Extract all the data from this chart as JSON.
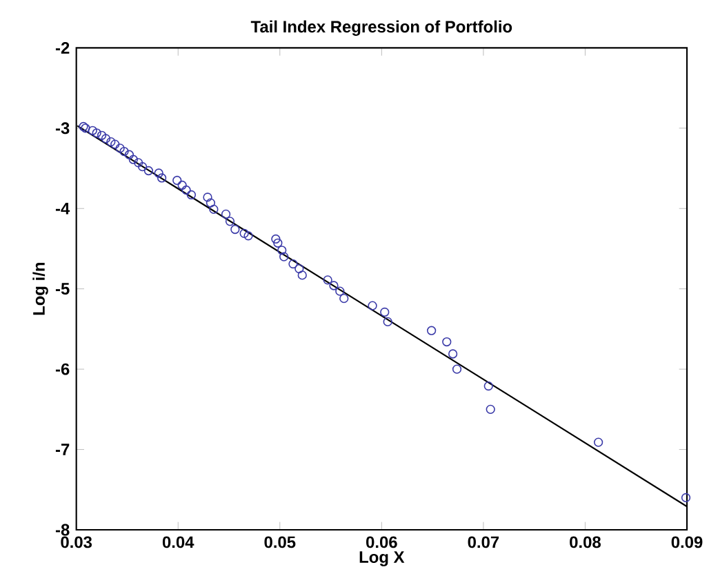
{
  "chart_data": {
    "type": "scatter",
    "title": "Tail Index Regression of Portfolio",
    "xlabel": "Log X",
    "ylabel": "Log i/n",
    "xlim": [
      0.03,
      0.09
    ],
    "ylim": [
      -8,
      -2
    ],
    "xticks": [
      0.03,
      0.04,
      0.05,
      0.06,
      0.07,
      0.08,
      0.09
    ],
    "yticks": [
      -8,
      -7,
      -6,
      -5,
      -4,
      -3,
      -2
    ],
    "grid": false,
    "series": [
      {
        "marker": "circle",
        "color": "#3a3aa8",
        "x": [
          0.0307,
          0.0309,
          0.0316,
          0.032,
          0.0325,
          0.0329,
          0.0334,
          0.0338,
          0.0343,
          0.0347,
          0.0352,
          0.0356,
          0.0361,
          0.0365,
          0.0371,
          0.0381,
          0.0384,
          0.0399,
          0.0404,
          0.0408,
          0.0413,
          0.0429,
          0.0432,
          0.0435,
          0.0447,
          0.0451,
          0.0456,
          0.0465,
          0.0469,
          0.0496,
          0.0498,
          0.0502,
          0.0504,
          0.0513,
          0.0519,
          0.0522,
          0.0547,
          0.0553,
          0.0559,
          0.0563,
          0.0591,
          0.0603,
          0.0606,
          0.0649,
          0.0664,
          0.067,
          0.0674,
          0.0705,
          0.0707,
          0.0813,
          0.0899
        ],
        "values": [
          -2.98,
          -3.0,
          -3.03,
          -3.06,
          -3.09,
          -3.13,
          -3.17,
          -3.2,
          -3.25,
          -3.29,
          -3.33,
          -3.39,
          -3.43,
          -3.48,
          -3.53,
          -3.56,
          -3.62,
          -3.65,
          -3.71,
          -3.77,
          -3.83,
          -3.86,
          -3.93,
          -4.01,
          -4.07,
          -4.16,
          -4.26,
          -4.31,
          -4.34,
          -4.38,
          -4.43,
          -4.52,
          -4.6,
          -4.69,
          -4.75,
          -4.83,
          -4.89,
          -4.96,
          -5.03,
          -5.12,
          -5.21,
          -5.29,
          -5.41,
          -5.52,
          -5.66,
          -5.81,
          -6.0,
          -6.21,
          -6.5,
          -6.91,
          -7.6
        ]
      },
      {
        "type": "line",
        "color": "#000000",
        "x": [
          0.0301,
          0.09
        ],
        "values": [
          -2.97,
          -7.71
        ]
      }
    ]
  }
}
